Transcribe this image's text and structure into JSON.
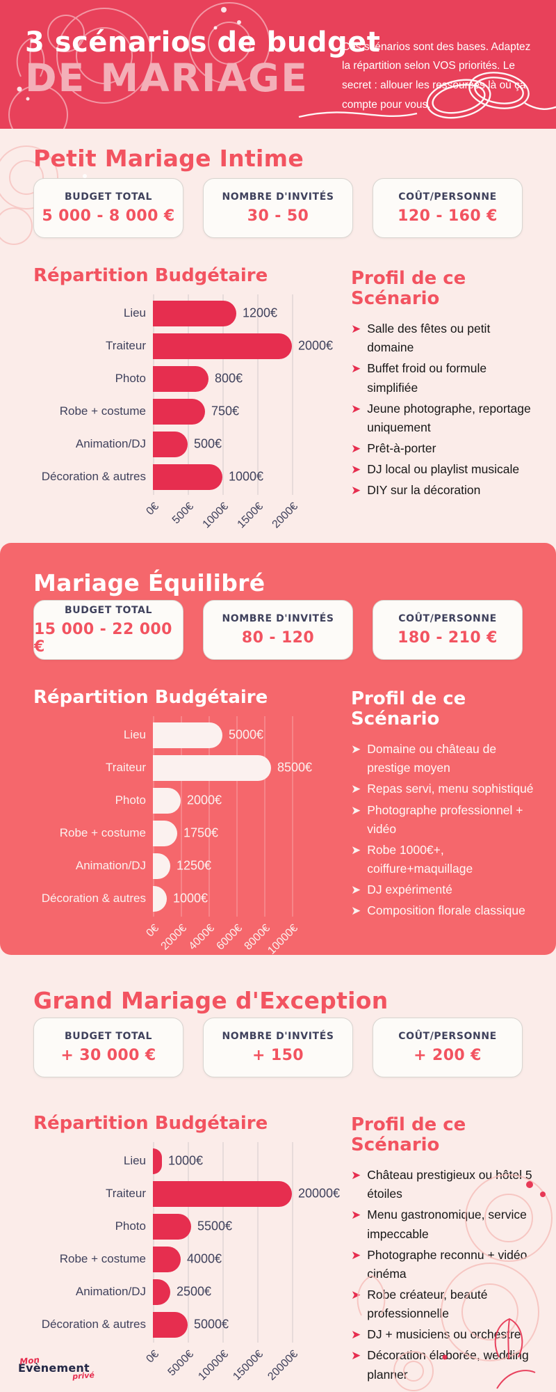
{
  "colors": {
    "hero_bg": "#E8415A",
    "band_bg": "#F5676C",
    "page_bg": "#FBECE9",
    "crimson": "#E62E4F",
    "navy": "#3F415C",
    "red_heading": "#F25360",
    "pink_title": "#F3AFB8",
    "card_bg": "#FDFBF8",
    "card_border": "#D8D5D0",
    "offwhite": "#FBF1EF",
    "ink": "#161616"
  },
  "header": {
    "title_line1": "3 scénarios de budget",
    "title_line2": "DE MARIAGE",
    "subtitle": "Ces scénarios sont des bases. Adaptez la répartition selon VOS priorités. Le secret : allouer les ressources là où ça compte pour vous."
  },
  "shared": {
    "chart_heading": "Répartition Budgétaire",
    "profile_heading": "Profil de ce Scénario"
  },
  "sections": [
    {
      "title": "Petit Mariage Intime",
      "stats": [
        {
          "label": "BUDGET TOTAL",
          "value": "5 000 - 8 000 €"
        },
        {
          "label": "NOMBRE D'INVITÉS",
          "value": "30 - 50"
        },
        {
          "label": "COÛT/PERSONNE",
          "value": "120 - 160 €"
        }
      ],
      "profile": [
        "Salle des fêtes ou petit domaine",
        "Buffet froid ou formule simplifiée",
        "Jeune photographe, reportage uniquement",
        "Prêt-à-porter",
        "DJ local ou playlist musicale",
        "DIY sur la décoration"
      ]
    },
    {
      "title": "Mariage Équilibré",
      "stats": [
        {
          "label": "BUDGET TOTAL",
          "value": "15 000 - 22 000 €"
        },
        {
          "label": "NOMBRE D'INVITÉS",
          "value": "80 - 120"
        },
        {
          "label": "COÛT/PERSONNE",
          "value": "180 - 210 €"
        }
      ],
      "profile": [
        "Domaine ou château de prestige moyen",
        "Repas servi, menu sophistiqué",
        "Photographe professionnel + vidéo",
        "Robe 1000€+, coiffure+maquillage",
        "DJ expérimenté",
        "Composition florale classique"
      ]
    },
    {
      "title": "Grand Mariage d'Exception",
      "stats": [
        {
          "label": "BUDGET TOTAL",
          "value": "+ 30 000 €"
        },
        {
          "label": "NOMBRE D'INVITÉS",
          "value": "+ 150"
        },
        {
          "label": "COÛT/PERSONNE",
          "value": "+ 200 €"
        }
      ],
      "profile": [
        "Château prestigieux ou hôtel 5 étoiles",
        "Menu gastronomique, service impeccable",
        "Photographe reconnu + vidéo cinéma",
        "Robe créateur, beauté professionnelle",
        "DJ + musiciens ou orchestre",
        "Décoration élaborée, wedding planner"
      ]
    }
  ],
  "chart_data": [
    {
      "type": "bar",
      "orientation": "horizontal",
      "title": "Répartition Budgétaire",
      "categories": [
        "Lieu",
        "Traiteur",
        "Photo",
        "Robe + costume",
        "Animation/DJ",
        "Décoration & autres"
      ],
      "values": [
        1200,
        2000,
        800,
        750,
        500,
        1000
      ],
      "value_labels": [
        "1200€",
        "2000€",
        "800€",
        "750€",
        "500€",
        "1000€"
      ],
      "ticks": [
        "0€",
        "500€",
        "1000€",
        "1500€",
        "2000€"
      ],
      "xlim": [
        0,
        2000
      ],
      "grid": true,
      "bar_color": "#E62E4F"
    },
    {
      "type": "bar",
      "orientation": "horizontal",
      "title": "Répartition Budgétaire",
      "categories": [
        "Lieu",
        "Traiteur",
        "Photo",
        "Robe + costume",
        "Animation/DJ",
        "Décoration & autres"
      ],
      "values": [
        5000,
        8500,
        2000,
        1750,
        1250,
        1000
      ],
      "value_labels": [
        "5000€",
        "8500€",
        "2000€",
        "1750€",
        "1250€",
        "1000€"
      ],
      "ticks": [
        "0€",
        "2000€",
        "4000€",
        "6000€",
        "8000€",
        "10000€"
      ],
      "xlim": [
        0,
        10000
      ],
      "grid": true,
      "bar_color": "#FBF1EF"
    },
    {
      "type": "bar",
      "orientation": "horizontal",
      "title": "Répartition Budgétaire",
      "categories": [
        "Lieu",
        "Traiteur",
        "Photo",
        "Robe + costume",
        "Animation/DJ",
        "Décoration & autres"
      ],
      "values": [
        1000,
        20000,
        5500,
        4000,
        2500,
        5000
      ],
      "value_labels": [
        "1000€",
        "20000€",
        "5500€",
        "4000€",
        "2500€",
        "5000€"
      ],
      "ticks": [
        "0€",
        "5000€",
        "10000€",
        "15000€",
        "20000€"
      ],
      "xlim": [
        0,
        20000
      ],
      "grid": true,
      "bar_color": "#E62E4F"
    }
  ],
  "footer": {
    "logo_line1": "Mon",
    "logo_line2": "Evènement",
    "logo_line3": "privé"
  }
}
